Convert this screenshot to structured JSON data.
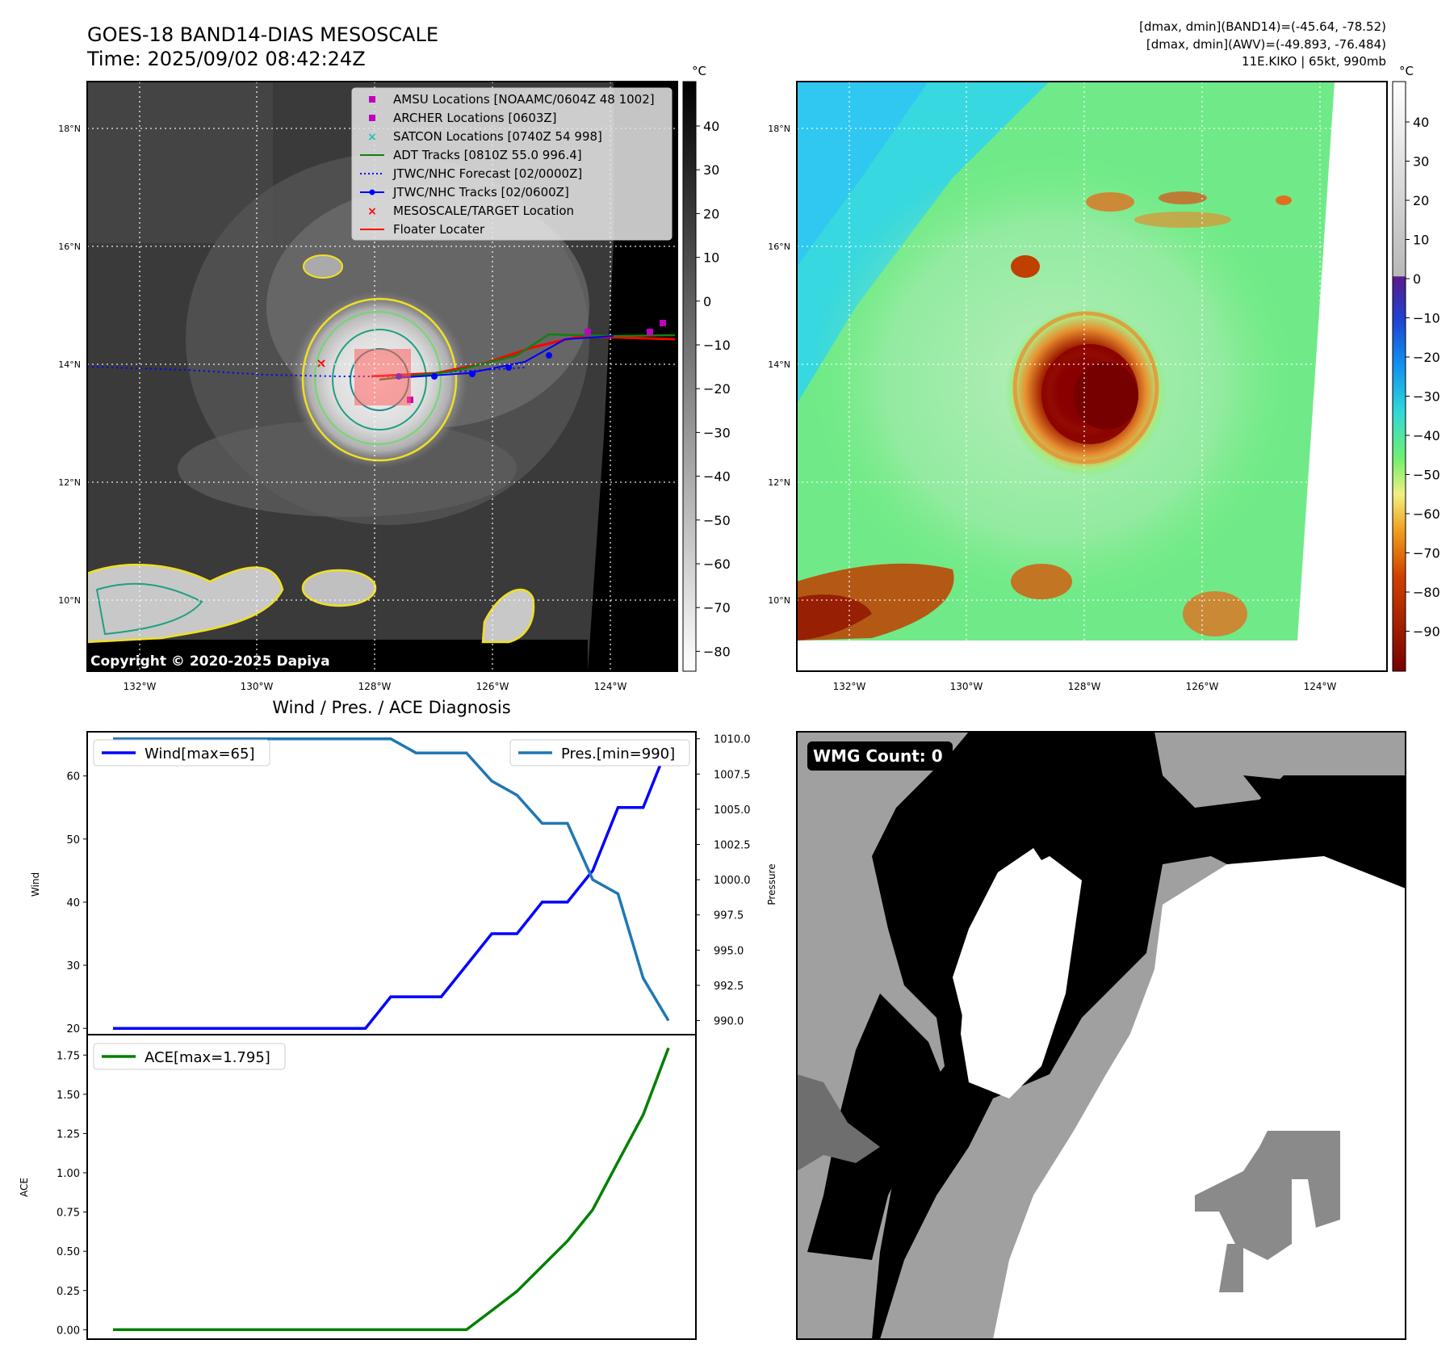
{
  "header": {
    "title_line1": "GOES-18 BAND14-DIAS MESOSCALE",
    "title_line2": "Time: 2025/09/02 08:42:24Z",
    "info_line1": "[dmax, dmin](BAND14)=(-45.64, -78.52)",
    "info_line2": "[dmax, dmin](AWV)=(-49.893, -76.484)",
    "info_line3": "11E.KIKO | 65kt, 990mb"
  },
  "map_axes": {
    "lat_labels": [
      "18°N",
      "16°N",
      "14°N",
      "12°N",
      "10°N"
    ],
    "lon_labels": [
      "132°W",
      "130°W",
      "128°W",
      "126°W",
      "124°W"
    ]
  },
  "colorbar_left": {
    "unit": "°C",
    "ticks": [
      "40",
      "30",
      "20",
      "10",
      "0",
      "−10",
      "−20",
      "−30",
      "−40",
      "−50",
      "−60",
      "−70",
      "−80"
    ]
  },
  "colorbar_right": {
    "unit": "°C",
    "ticks": [
      "40",
      "30",
      "20",
      "10",
      "0",
      "−10",
      "−20",
      "−30",
      "−40",
      "−50",
      "−60",
      "−70",
      "−80",
      "−90"
    ]
  },
  "legend": [
    {
      "label": "AMSU Locations [NOAAMC/0604Z 48 1002]",
      "color": "#c000c0",
      "marker": "square"
    },
    {
      "label": "ARCHER Locations [0603Z]",
      "color": "#c000c0",
      "marker": "square"
    },
    {
      "label": "SATCON Locations [0740Z 54 998]",
      "color": "#20c0c0",
      "marker": "x"
    },
    {
      "label": "ADT Tracks [0810Z 55.0 996.4]",
      "color": "#108010",
      "marker": "line"
    },
    {
      "label": "JTWC/NHC Forecast [02/0000Z]",
      "color": "#0000ff",
      "marker": "dotted"
    },
    {
      "label": "JTWC/NHC Tracks [02/0600Z]",
      "color": "#0000ff",
      "marker": "line-dot"
    },
    {
      "label": "MESOSCALE/TARGET Location",
      "color": "#ff0000",
      "marker": "x"
    },
    {
      "label": "Floater Locater",
      "color": "#ff0000",
      "marker": "line"
    }
  ],
  "copyright": "Copyright © 2020-2025 Dapiya",
  "wmg_label": "WMG Count: 0",
  "chart_data": [
    {
      "type": "line",
      "title": "Wind / Pres. / ACE Diagnosis",
      "ylabel": "Wind",
      "ylabel2": "Pressure",
      "ylim": [
        19,
        67
      ],
      "ylim2": [
        989,
        1010.5
      ],
      "y_ticks": [
        "60",
        "50",
        "40",
        "30",
        "20"
      ],
      "y2_ticks": [
        "1010.0",
        "1007.5",
        "1005.0",
        "1002.5",
        "1000.0",
        "997.5",
        "995.0",
        "992.5",
        "990.0"
      ],
      "series": [
        {
          "name": "Wind[max=65]",
          "color": "#0000ff",
          "values": [
            20,
            20,
            20,
            20,
            20,
            20,
            20,
            20,
            20,
            20,
            20,
            25,
            25,
            25,
            30,
            35,
            35,
            40,
            40,
            45,
            55,
            55,
            65
          ]
        },
        {
          "name": "Pres.[min=990]",
          "color": "#1f77b4",
          "values": [
            1010,
            1010,
            1010,
            1010,
            1010,
            1010,
            1010,
            1010,
            1010,
            1010,
            1010,
            1010,
            1009,
            1009,
            1009,
            1007,
            1006,
            1004,
            1004,
            1000,
            999,
            993,
            990
          ]
        }
      ]
    },
    {
      "type": "line",
      "ylabel": "ACE",
      "ylim": [
        -0.06,
        1.88
      ],
      "y_ticks": [
        "1.75",
        "1.50",
        "1.25",
        "1.00",
        "0.75",
        "0.50",
        "0.25",
        "0.00"
      ],
      "series": [
        {
          "name": "ACE[max=1.795]",
          "color": "#008000",
          "values": [
            0,
            0,
            0,
            0,
            0,
            0,
            0,
            0,
            0,
            0,
            0,
            0,
            0,
            0,
            0,
            0.122,
            0.245,
            0.405,
            0.565,
            0.765,
            1.07,
            1.37,
            1.795
          ]
        }
      ]
    }
  ]
}
